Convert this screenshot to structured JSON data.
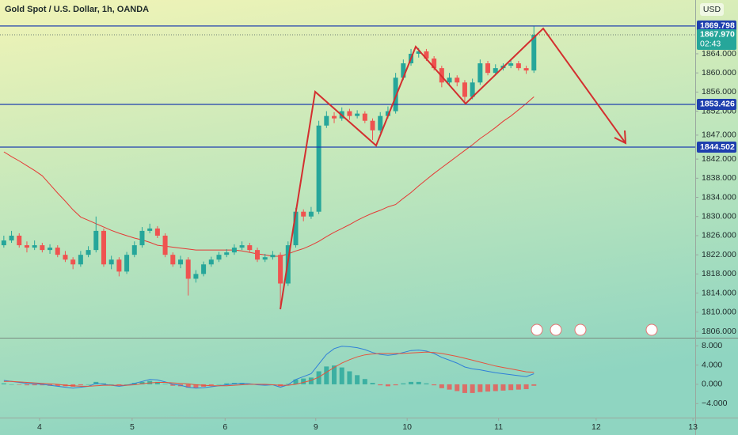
{
  "chart_data": [
    {
      "type": "candlestick",
      "title": "Gold Spot / U.S. Dollar, 1h, OANDA",
      "currency": "USD",
      "up_color": "#26a69a",
      "down_color": "#ef5350",
      "ma_color": "#e53935",
      "hline_color": "#1e3fae",
      "xlim": [
        -0.5,
        90
      ],
      "xticks": [
        {
          "value": 4.65,
          "label": "4"
        },
        {
          "value": 16.7,
          "label": "5"
        },
        {
          "value": 28.8,
          "label": "6"
        },
        {
          "value": 40.6,
          "label": "9"
        },
        {
          "value": 52.5,
          "label": "10"
        },
        {
          "value": 64.4,
          "label": "11"
        },
        {
          "value": 77.1,
          "label": "12"
        },
        {
          "value": 89.7,
          "label": "13"
        }
      ],
      "ylim": [
        1804.68,
        1875.23
      ],
      "yticks": [
        {
          "value": 1806,
          "label": "1806.000"
        },
        {
          "value": 1810,
          "label": "1810.000"
        },
        {
          "value": 1814,
          "label": "1814.000"
        },
        {
          "value": 1818,
          "label": "1818.000"
        },
        {
          "value": 1822,
          "label": "1822.000"
        },
        {
          "value": 1826,
          "label": "1826.000"
        },
        {
          "value": 1830,
          "label": "1830.000"
        },
        {
          "value": 1834,
          "label": "1834.000"
        },
        {
          "value": 1838,
          "label": "1838.000"
        },
        {
          "value": 1842,
          "label": "1842.000"
        },
        {
          "value": 1847,
          "label": "1847.000"
        },
        {
          "value": 1852,
          "label": "1852.000"
        },
        {
          "value": 1856,
          "label": "1856.000"
        },
        {
          "value": 1860,
          "label": "1860.000"
        },
        {
          "value": 1864,
          "label": "1864.000"
        }
      ],
      "hlines": [
        1869.798,
        1853.426,
        1844.502
      ],
      "last_price": {
        "value": 1867.97,
        "label": "1867.970"
      },
      "countdown": "02:43",
      "candles": [
        [
          1824,
          1826,
          1823.5,
          1825
        ],
        [
          1825,
          1827,
          1824.5,
          1826
        ],
        [
          1826,
          1826.5,
          1823.5,
          1824
        ],
        [
          1824,
          1824.8,
          1822.5,
          1823.5
        ],
        [
          1823.5,
          1825,
          1823,
          1824
        ],
        [
          1824,
          1824.5,
          1822.5,
          1823
        ],
        [
          1823,
          1824.2,
          1822.2,
          1823.5
        ],
        [
          1823.5,
          1824,
          1821.5,
          1822
        ],
        [
          1822,
          1822.8,
          1820.5,
          1821
        ],
        [
          1821,
          1821.5,
          1819,
          1820
        ],
        [
          1820,
          1822.8,
          1819.5,
          1822
        ],
        [
          1822,
          1823.8,
          1821.5,
          1823
        ],
        [
          1823,
          1830,
          1822.5,
          1827
        ],
        [
          1827,
          1827.5,
          1819.5,
          1820
        ],
        [
          1820,
          1821.8,
          1819,
          1821
        ],
        [
          1821,
          1821.5,
          1817.5,
          1818.5
        ],
        [
          1818.5,
          1822.6,
          1818,
          1822
        ],
        [
          1822,
          1824.8,
          1821.5,
          1824
        ],
        [
          1824,
          1827.8,
          1823.5,
          1827
        ],
        [
          1827,
          1828.5,
          1826.5,
          1827.5
        ],
        [
          1827.5,
          1828,
          1825.5,
          1826
        ],
        [
          1826,
          1826.5,
          1821.5,
          1822
        ],
        [
          1822,
          1822.5,
          1819.5,
          1820
        ],
        [
          1820,
          1821.8,
          1819.2,
          1821
        ],
        [
          1821,
          1821.5,
          1813.5,
          1817
        ],
        [
          1817,
          1818.8,
          1816.2,
          1818
        ],
        [
          1818,
          1820.6,
          1817.5,
          1820
        ],
        [
          1820,
          1821.6,
          1819.5,
          1821
        ],
        [
          1821,
          1822.6,
          1820.5,
          1822
        ],
        [
          1822,
          1823.2,
          1821.5,
          1822.5
        ],
        [
          1822.5,
          1824.2,
          1822,
          1823.5
        ],
        [
          1823.5,
          1824.8,
          1823,
          1824
        ],
        [
          1824,
          1824.5,
          1822.5,
          1823
        ],
        [
          1823,
          1823.5,
          1820.5,
          1821
        ],
        [
          1821,
          1822.2,
          1820.5,
          1821.5
        ],
        [
          1821.5,
          1822.8,
          1821,
          1822
        ],
        [
          1822,
          1822.5,
          1811,
          1816
        ],
        [
          1816,
          1824.8,
          1815.5,
          1824
        ],
        [
          1824,
          1831.8,
          1823.5,
          1831
        ],
        [
          1831,
          1831.5,
          1829,
          1830
        ],
        [
          1830,
          1832,
          1829.5,
          1831
        ],
        [
          1831,
          1850,
          1830.5,
          1849
        ],
        [
          1849,
          1852,
          1848.5,
          1851
        ],
        [
          1851,
          1851.8,
          1849.5,
          1850.5
        ],
        [
          1850.5,
          1852.8,
          1850,
          1852
        ],
        [
          1852,
          1852.5,
          1850.2,
          1851
        ],
        [
          1851,
          1852.2,
          1850.5,
          1851.5
        ],
        [
          1851.5,
          1852,
          1849.5,
          1850
        ],
        [
          1850,
          1850.5,
          1846,
          1848
        ],
        [
          1848,
          1851.8,
          1847.5,
          1851
        ],
        [
          1851,
          1853,
          1850.5,
          1852
        ],
        [
          1852,
          1860,
          1851.5,
          1859
        ],
        [
          1859,
          1862.8,
          1858.5,
          1862
        ],
        [
          1862,
          1865,
          1861.5,
          1864
        ],
        [
          1864,
          1865.2,
          1863.2,
          1864.5
        ],
        [
          1864.5,
          1865,
          1862.5,
          1863
        ],
        [
          1863,
          1863.5,
          1860.5,
          1861
        ],
        [
          1861,
          1861.5,
          1857,
          1858
        ],
        [
          1858,
          1860,
          1857.2,
          1859
        ],
        [
          1859,
          1859.5,
          1857.2,
          1858
        ],
        [
          1858,
          1858.5,
          1854,
          1855
        ],
        [
          1855,
          1858.8,
          1854.5,
          1858
        ],
        [
          1858,
          1862.8,
          1857.5,
          1862
        ],
        [
          1862,
          1862.5,
          1859.5,
          1860
        ],
        [
          1860,
          1861.8,
          1859.5,
          1861
        ],
        [
          1861,
          1862,
          1860.5,
          1861.5
        ],
        [
          1861.5,
          1862.6,
          1861,
          1862
        ],
        [
          1862,
          1862.5,
          1860.5,
          1861
        ],
        [
          1861,
          1861.5,
          1859.8,
          1860.5
        ],
        [
          1860.5,
          1869.8,
          1860,
          1867.97
        ]
      ],
      "ma": [
        1843.5,
        1842.5,
        1841.6,
        1840.6,
        1839.6,
        1838.5,
        1836.7,
        1834.9,
        1833.2,
        1831.4,
        1829.9,
        1829.2,
        1828.5,
        1827.8,
        1827.1,
        1826.5,
        1826,
        1825.5,
        1825.1,
        1824.6,
        1824,
        1823.8,
        1823.6,
        1823.4,
        1823.2,
        1823,
        1823,
        1823,
        1823,
        1823,
        1823,
        1822.8,
        1822.5,
        1822.2,
        1822,
        1821.7,
        1821.7,
        1822.2,
        1822.8,
        1823.3,
        1824,
        1824.8,
        1825.8,
        1826.7,
        1827.5,
        1828.3,
        1829.2,
        1830,
        1830.7,
        1831.3,
        1832,
        1832.5,
        1833.8,
        1835,
        1836.4,
        1837.7,
        1839,
        1840.2,
        1841.4,
        1842.6,
        1843.8,
        1845,
        1846.3,
        1847.4,
        1848.6,
        1849.9,
        1851,
        1852.3,
        1853.6,
        1855
      ]
    },
    {
      "type": "macd",
      "macd_color": "#2f7fd8",
      "signal_color": "#e5533d",
      "hist_up_color": "#26a69a",
      "hist_down_color": "#ef5350",
      "ylim": [
        -6.9,
        9.5
      ],
      "yticks": [
        {
          "value": 8,
          "label": "8.000"
        },
        {
          "value": 4,
          "label": "4.000"
        },
        {
          "value": 0,
          "label": "0.000"
        },
        {
          "value": -4,
          "label": "−4.000"
        }
      ],
      "macd": [
        0.8,
        0.6,
        0.4,
        0.2,
        0.1,
        0,
        -0.2,
        -0.4,
        -0.6,
        -0.8,
        -0.6,
        -0.4,
        0.2,
        0,
        -0.2,
        -0.4,
        -0.2,
        0.2,
        0.6,
        1,
        0.9,
        0.5,
        0,
        -0.2,
        -0.6,
        -0.8,
        -0.7,
        -0.5,
        -0.3,
        -0.1,
        0.1,
        0.2,
        0.1,
        -0.1,
        -0.2,
        -0.1,
        -0.6,
        -0.1,
        1,
        1.6,
        2.2,
        4.2,
        6.2,
        7.4,
        7.9,
        7.8,
        7.6,
        7.2,
        6.6,
        6.2,
        6,
        6.2,
        6.6,
        7,
        7.1,
        6.9,
        6.4,
        5.6,
        5,
        4.4,
        3.6,
        3.2,
        3,
        2.7,
        2.4,
        2.2,
        2,
        1.8,
        1.6,
        2.2
      ],
      "signal": [
        0.6,
        0.6,
        0.5,
        0.4,
        0.3,
        0.2,
        0.1,
        0,
        -0.2,
        -0.3,
        -0.4,
        -0.4,
        -0.3,
        -0.2,
        -0.2,
        -0.2,
        -0.2,
        -0.1,
        0.1,
        0.3,
        0.4,
        0.4,
        0.3,
        0.2,
        0.1,
        -0.1,
        -0.2,
        -0.3,
        -0.3,
        -0.3,
        -0.2,
        -0.1,
        0,
        0,
        0,
        -0.1,
        -0.2,
        -0.2,
        0,
        0.4,
        0.8,
        1.5,
        2.5,
        3.5,
        4.4,
        5.1,
        5.7,
        6.1,
        6.3,
        6.4,
        6.4,
        6.4,
        6.4,
        6.5,
        6.6,
        6.7,
        6.6,
        6.4,
        6.1,
        5.8,
        5.4,
        5,
        4.6,
        4.2,
        3.8,
        3.5,
        3.2,
        2.9,
        2.6,
        2.5
      ],
      "histogram": [
        0.2,
        0,
        -0.1,
        -0.2,
        -0.2,
        -0.2,
        -0.3,
        -0.4,
        -0.4,
        -0.5,
        -0.2,
        0,
        0.5,
        0.2,
        0,
        -0.2,
        0,
        0.3,
        0.5,
        0.7,
        0.5,
        0.1,
        -0.3,
        -0.4,
        -0.7,
        -0.7,
        -0.5,
        -0.2,
        0,
        0.2,
        0.3,
        0.3,
        0.1,
        -0.1,
        -0.2,
        0,
        -0.4,
        0.1,
        1,
        1.2,
        1.4,
        2.7,
        3.7,
        3.9,
        3.5,
        2.7,
        1.9,
        1.1,
        0.3,
        -0.2,
        -0.4,
        -0.2,
        0.2,
        0.5,
        0.5,
        0.2,
        -0.2,
        -0.8,
        -1.1,
        -1.4,
        -1.8,
        -1.8,
        -1.6,
        -1.5,
        -1.4,
        -1.3,
        -1.2,
        -1.1,
        -1,
        -0.3
      ]
    }
  ]
}
